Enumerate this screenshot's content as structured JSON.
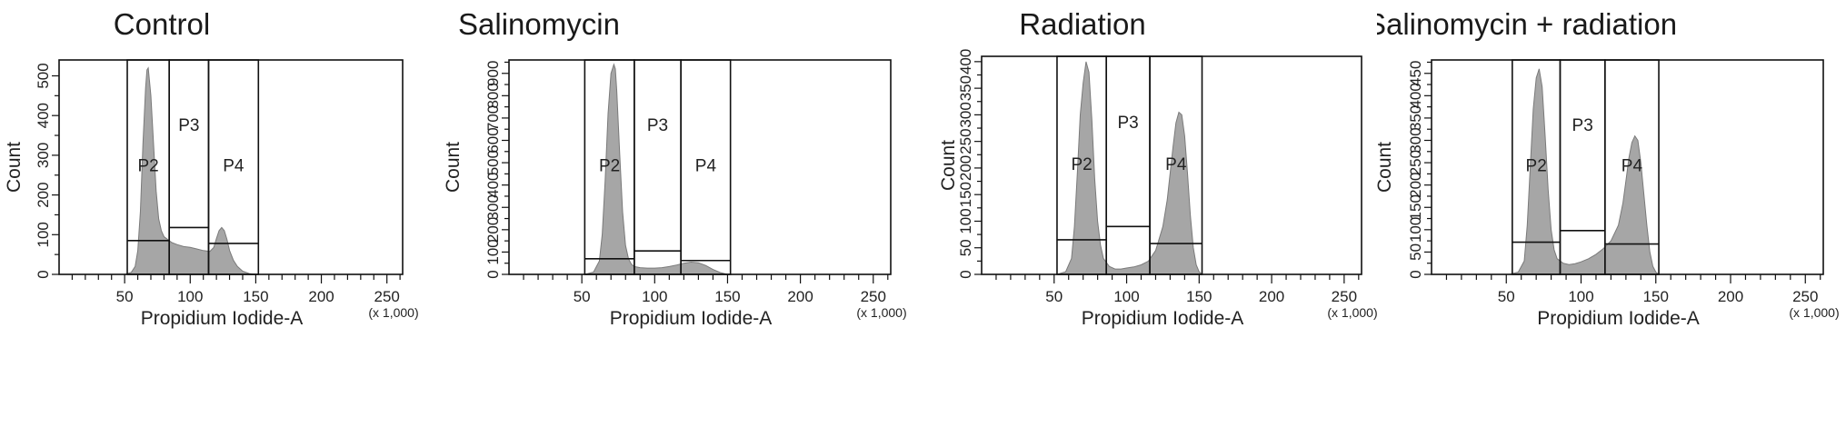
{
  "chart_data": [
    {
      "type": "area",
      "title": "Control",
      "xlabel": "Propidium Iodide-A",
      "x_unit": "(x 1,000)",
      "ylabel": "Count",
      "xlim": [
        0,
        262
      ],
      "ylim": [
        0,
        540
      ],
      "x_ticks": [
        50,
        100,
        150,
        200,
        250
      ],
      "y_ticks": [
        0,
        100,
        200,
        300,
        400,
        500
      ],
      "x": [
        50,
        55,
        58,
        60,
        62,
        64,
        66,
        67,
        68,
        70,
        72,
        74,
        76,
        78,
        80,
        82,
        84,
        86,
        90,
        95,
        100,
        105,
        110,
        115,
        118,
        120,
        122,
        124,
        126,
        128,
        130,
        133,
        136,
        140,
        145,
        150
      ],
      "y": [
        0,
        5,
        20,
        60,
        160,
        330,
        470,
        515,
        520,
        450,
        330,
        210,
        140,
        110,
        95,
        90,
        85,
        80,
        75,
        70,
        68,
        64,
        60,
        58,
        68,
        90,
        110,
        118,
        110,
        88,
        60,
        35,
        20,
        8,
        2,
        0
      ],
      "gates": [
        {
          "name": "P2",
          "x": [
            52,
            84
          ],
          "y": 85
        },
        {
          "name": "P3",
          "x": [
            84,
            114
          ],
          "y": 118
        },
        {
          "name": "P4",
          "x": [
            114,
            152
          ],
          "y": 78
        }
      ]
    },
    {
      "type": "area",
      "title": "Salinomycin",
      "xlabel": "Propidium Iodide-A",
      "x_unit": "(x 1,000)",
      "ylabel": "Count",
      "xlim": [
        0,
        262
      ],
      "ylim": [
        0,
        960
      ],
      "x_ticks": [
        50,
        100,
        150,
        200,
        250
      ],
      "y_ticks": [
        0,
        100,
        200,
        300,
        400,
        500,
        600,
        700,
        800,
        900
      ],
      "x": [
        52,
        58,
        62,
        64,
        66,
        68,
        70,
        72,
        73,
        74,
        76,
        78,
        80,
        82,
        84,
        86,
        90,
        95,
        100,
        105,
        110,
        115,
        120,
        125,
        130,
        135,
        140,
        145,
        150
      ],
      "y": [
        0,
        10,
        60,
        180,
        420,
        720,
        900,
        940,
        920,
        820,
        540,
        280,
        130,
        70,
        45,
        35,
        30,
        28,
        28,
        30,
        35,
        42,
        50,
        55,
        52,
        40,
        22,
        8,
        0
      ],
      "gates": [
        {
          "name": "P2",
          "x": [
            52,
            86
          ],
          "y": 70
        },
        {
          "name": "P3",
          "x": [
            86,
            118
          ],
          "y": 105
        },
        {
          "name": "P4",
          "x": [
            118,
            152
          ],
          "y": 62
        }
      ]
    },
    {
      "type": "area",
      "title": "Radiation",
      "xlabel": "Propidium Iodide-A",
      "x_unit": "(x 1,000)",
      "ylabel": "Count",
      "xlim": [
        0,
        262
      ],
      "ylim": [
        0,
        410
      ],
      "x_ticks": [
        50,
        100,
        150,
        200,
        250
      ],
      "y_ticks": [
        0,
        50,
        100,
        150,
        200,
        250,
        300,
        350,
        400
      ],
      "x": [
        52,
        58,
        62,
        64,
        66,
        68,
        70,
        72,
        74,
        76,
        78,
        80,
        82,
        84,
        88,
        92,
        96,
        100,
        105,
        110,
        115,
        120,
        125,
        128,
        130,
        132,
        134,
        136,
        138,
        140,
        142,
        144,
        146,
        148,
        150,
        152
      ],
      "y": [
        0,
        5,
        30,
        90,
        190,
        300,
        360,
        400,
        380,
        290,
        180,
        100,
        55,
        30,
        15,
        10,
        10,
        12,
        14,
        18,
        25,
        45,
        90,
        140,
        190,
        240,
        285,
        305,
        300,
        260,
        190,
        110,
        50,
        18,
        5,
        0
      ],
      "gates": [
        {
          "name": "P2",
          "x": [
            52,
            86
          ],
          "y": 65
        },
        {
          "name": "P3",
          "x": [
            86,
            116
          ],
          "y": 90
        },
        {
          "name": "P4",
          "x": [
            116,
            152
          ],
          "y": 58
        }
      ]
    },
    {
      "type": "area",
      "title": "Salinomycin + radiation",
      "xlabel": "Propidium Iodide-A",
      "x_unit": "(x 1,000)",
      "ylabel": "Count",
      "xlim": [
        0,
        262
      ],
      "ylim": [
        0,
        480
      ],
      "x_ticks": [
        50,
        100,
        150,
        200,
        250
      ],
      "y_ticks": [
        0,
        50,
        100,
        150,
        200,
        250,
        300,
        350,
        400,
        450
      ],
      "x": [
        52,
        58,
        62,
        64,
        66,
        68,
        70,
        72,
        74,
        76,
        78,
        80,
        82,
        84,
        88,
        92,
        96,
        100,
        105,
        110,
        115,
        120,
        125,
        128,
        130,
        132,
        134,
        136,
        138,
        140,
        142,
        144,
        146,
        148,
        150,
        152
      ],
      "y": [
        0,
        5,
        30,
        110,
        240,
        370,
        440,
        460,
        420,
        310,
        190,
        100,
        55,
        35,
        25,
        22,
        24,
        28,
        35,
        45,
        58,
        75,
        110,
        160,
        210,
        260,
        295,
        310,
        300,
        250,
        180,
        110,
        50,
        18,
        5,
        0
      ],
      "gates": [
        {
          "name": "P2",
          "x": [
            54,
            86
          ],
          "y": 72
        },
        {
          "name": "P3",
          "x": [
            86,
            116
          ],
          "y": 98
        },
        {
          "name": "P4",
          "x": [
            116,
            152
          ],
          "y": 68
        }
      ]
    }
  ]
}
